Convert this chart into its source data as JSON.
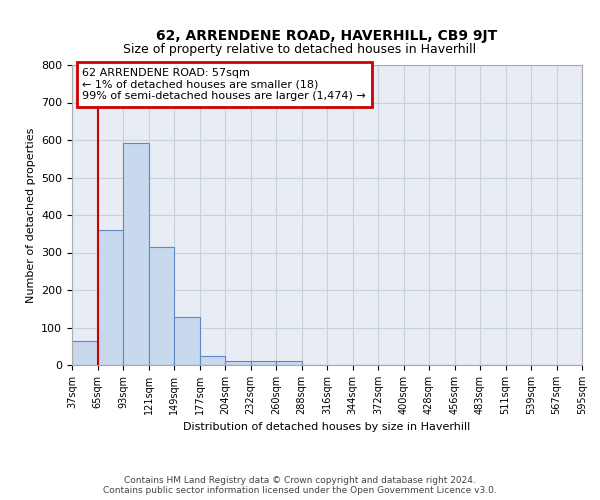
{
  "title": "62, ARRENDENE ROAD, HAVERHILL, CB9 9JT",
  "subtitle": "Size of property relative to detached houses in Haverhill",
  "xlabel": "Distribution of detached houses by size in Haverhill",
  "ylabel": "Number of detached properties",
  "footer_line1": "Contains HM Land Registry data © Crown copyright and database right 2024.",
  "footer_line2": "Contains public sector information licensed under the Open Government Licence v3.0.",
  "bin_labels": [
    "37sqm",
    "65sqm",
    "93sqm",
    "121sqm",
    "149sqm",
    "177sqm",
    "204sqm",
    "232sqm",
    "260sqm",
    "288sqm",
    "316sqm",
    "344sqm",
    "372sqm",
    "400sqm",
    "428sqm",
    "456sqm",
    "483sqm",
    "511sqm",
    "539sqm",
    "567sqm",
    "595sqm"
  ],
  "bar_values": [
    65,
    360,
    593,
    315,
    127,
    25,
    10,
    10,
    10,
    0,
    0,
    0,
    0,
    0,
    0,
    0,
    0,
    0,
    0,
    0
  ],
  "bar_color": "#c8d9ee",
  "bar_edge_color": "#5b8ac4",
  "grid_color": "#c8d0dc",
  "background_color": "#e8edf5",
  "red_line_x": 1.0,
  "annotation_text": "62 ARRENDENE ROAD: 57sqm\n← 1% of detached houses are smaller (18)\n99% of semi-detached houses are larger (1,474) →",
  "annotation_box_color": "#cc0000",
  "ylim": [
    0,
    800
  ],
  "yticks": [
    0,
    100,
    200,
    300,
    400,
    500,
    600,
    700,
    800
  ],
  "title_fontsize": 10,
  "subtitle_fontsize": 9,
  "ylabel_fontsize": 8,
  "xlabel_fontsize": 8,
  "ytick_fontsize": 8,
  "xtick_fontsize": 7,
  "annot_fontsize": 8,
  "footer_fontsize": 6.5
}
